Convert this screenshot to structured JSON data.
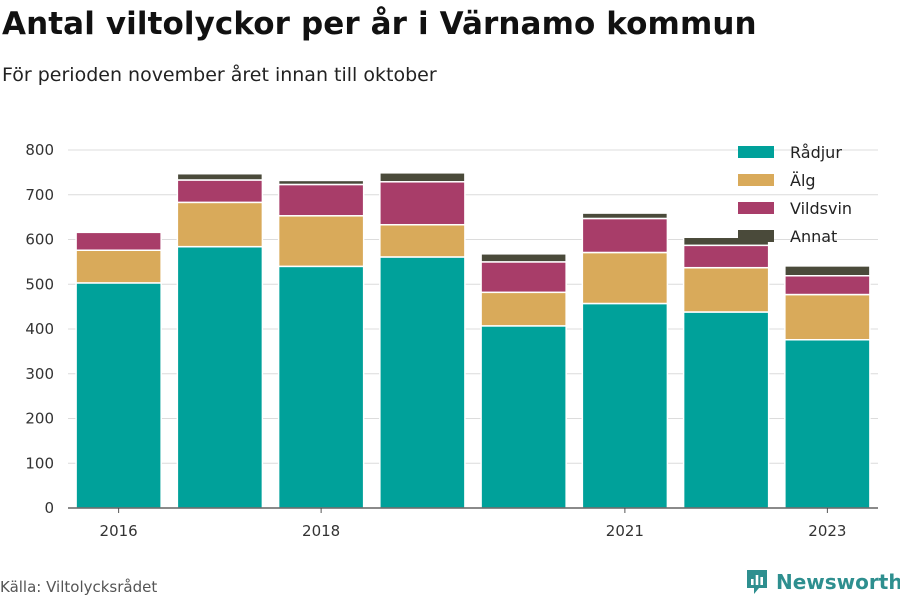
{
  "title": "Antal viltolyckor per år i Värnamo kommun",
  "subtitle": "För perioden november året innan till oktober",
  "source": "Källa: Viltolycksrådet",
  "brand": {
    "name": "Newsworthy",
    "icon": "newsworthy-logo-icon",
    "color": "#2e8f8f"
  },
  "chart_data": {
    "type": "bar",
    "stacked": true,
    "categories": [
      "2016",
      "2017",
      "2018",
      "2019",
      "2020",
      "2021",
      "2022",
      "2023"
    ],
    "x_tick_labels": [
      "2016",
      "",
      "2018",
      "",
      "",
      "2021",
      "",
      "2023"
    ],
    "ylim": [
      0,
      800
    ],
    "yticks": [
      0,
      100,
      200,
      300,
      400,
      500,
      600,
      700,
      800
    ],
    "grid": true,
    "legend_position": "top-right",
    "series": [
      {
        "name": "Rådjur",
        "color": "#00a19a",
        "values": [
          503,
          584,
          540,
          561,
          407,
          457,
          438,
          376
        ]
      },
      {
        "name": "Älg",
        "color": "#d9aa5a",
        "values": [
          73,
          99,
          113,
          72,
          75,
          114,
          99,
          101
        ]
      },
      {
        "name": "Vildsvin",
        "color": "#a83d69",
        "values": [
          40,
          50,
          70,
          96,
          68,
          76,
          50,
          42
        ]
      },
      {
        "name": "Annat",
        "color": "#4a4a3a",
        "values": [
          0,
          14,
          9,
          20,
          18,
          12,
          18,
          22
        ]
      }
    ]
  }
}
